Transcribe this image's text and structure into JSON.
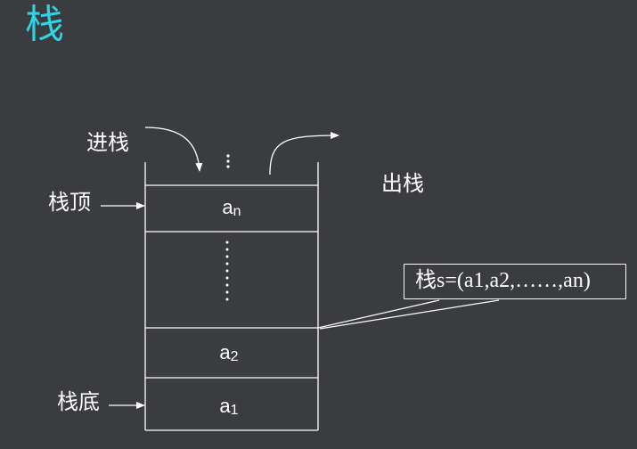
{
  "title": "栈",
  "labels": {
    "push": "进栈",
    "pop": "出栈",
    "top": "栈顶",
    "bottom": "栈底"
  },
  "stack": {
    "top_dots": "⋮",
    "cells": [
      {
        "base": "a",
        "sub": "n"
      },
      {
        "base": "a",
        "sub": "2"
      },
      {
        "base": "a",
        "sub": "1"
      }
    ]
  },
  "formula": "栈s=(a1,a2,……,an)",
  "colors": {
    "background": "#3b3c3f",
    "title": "#2fd3e3",
    "lines": "#ffffff"
  }
}
